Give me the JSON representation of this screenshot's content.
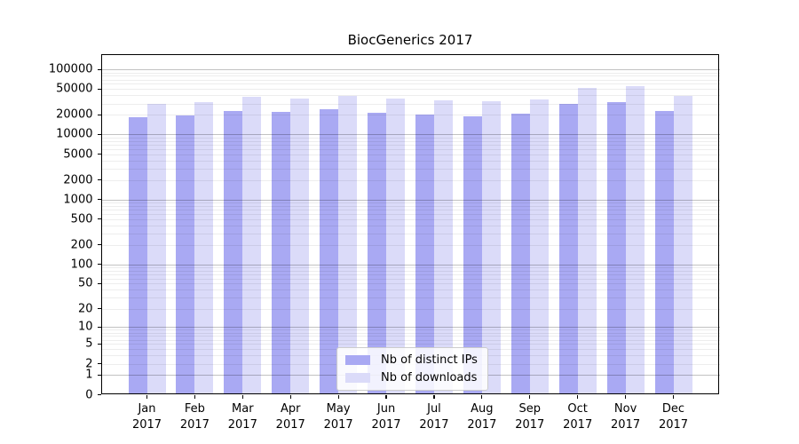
{
  "chart_data": {
    "type": "bar",
    "title": "BiocGenerics 2017",
    "categories": [
      "Jan 2017",
      "Feb 2017",
      "Mar 2017",
      "Apr 2017",
      "May 2017",
      "Jun 2017",
      "Jul 2017",
      "Aug 2017",
      "Sep 2017",
      "Oct 2017",
      "Nov 2017",
      "Dec 2017"
    ],
    "series": [
      {
        "name": "Nb of distinct IPs",
        "color": "#a9a9f3",
        "values": [
          18300,
          19600,
          23000,
          22300,
          24500,
          21400,
          20100,
          18900,
          20700,
          30000,
          31300,
          23000
        ]
      },
      {
        "name": "Nb of downloads",
        "color": "#dbdbf9",
        "values": [
          30000,
          31200,
          38300,
          35700,
          39000,
          35400,
          33200,
          32200,
          34600,
          51500,
          56000,
          39000
        ]
      }
    ],
    "xlabel": "",
    "ylabel": "",
    "yscale": "log10(value+1)",
    "ylim": [
      0,
      172000
    ],
    "yticks": [
      100000,
      50000,
      20000,
      10000,
      5000,
      2000,
      1000,
      500,
      200,
      100,
      50,
      20,
      10,
      5,
      2,
      1,
      0
    ],
    "grid": "major dark gray at powers of ten, light minor gridlines at 2-9 per decade",
    "legend_position": "lower center inside plot",
    "colors": {
      "distinct_ips_bar": "#a9a9f3",
      "downloads_bar": "#dbdbf9",
      "axis": "#000000",
      "background": "#ffffff"
    }
  }
}
